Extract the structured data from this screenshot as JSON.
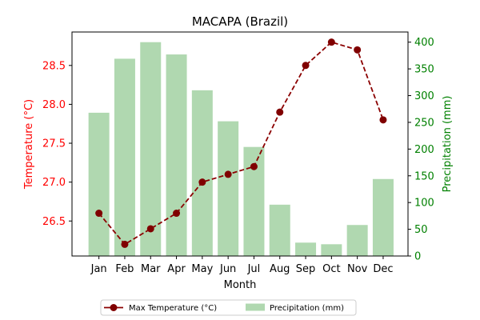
{
  "chart_data": {
    "type": "bar+line",
    "title": "MACAPA (Brazil)",
    "xlabel": "Month",
    "ylabel_left": "Temperature (°C)",
    "ylabel_right": "Precipitation (mm)",
    "categories": [
      "Jan",
      "Feb",
      "Mar",
      "Apr",
      "May",
      "Jun",
      "Jul",
      "Aug",
      "Sep",
      "Oct",
      "Nov",
      "Dec"
    ],
    "series": [
      {
        "name": "Max Temperature (°C)",
        "type": "line",
        "axis": "left",
        "values": [
          26.6,
          26.2,
          26.4,
          26.6,
          27.0,
          27.1,
          27.2,
          27.9,
          28.5,
          28.8,
          28.7,
          27.8
        ]
      },
      {
        "name": "Precipitation (mm)",
        "type": "bar",
        "axis": "right",
        "values": [
          268,
          369,
          400,
          377,
          310,
          252,
          204,
          96,
          25,
          22,
          58,
          144
        ]
      }
    ],
    "ylim_left": [
      26.05,
      28.93
    ],
    "ylim_right": [
      0,
      419
    ],
    "yticks_left": [
      "26.5",
      "27.0",
      "27.5",
      "28.0",
      "28.5"
    ],
    "yticks_right": [
      "0",
      "50",
      "100",
      "150",
      "200",
      "250",
      "300",
      "350",
      "400"
    ],
    "grid": false,
    "legend_position": "bottom-center",
    "colors": {
      "line": "#8b0000",
      "marker": "#800000",
      "bars": "#b0d8b0",
      "left_axis": "#ff0000",
      "right_axis": "#008000",
      "frame": "#000000"
    }
  }
}
